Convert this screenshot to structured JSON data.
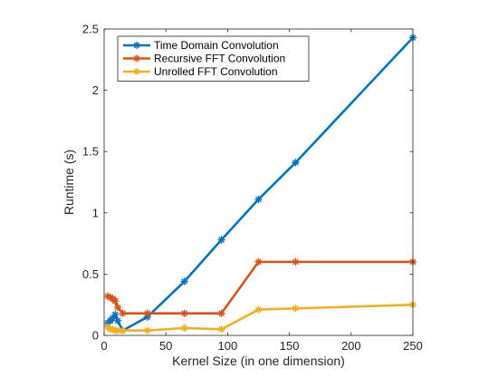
{
  "chart_data": {
    "type": "line",
    "xlabel": "Kernel Size (in one dimension)",
    "ylabel": "Runtime (s)",
    "xlim": [
      0,
      250
    ],
    "ylim": [
      0,
      2.5
    ],
    "xticks": [
      0,
      50,
      100,
      150,
      200,
      250
    ],
    "yticks": [
      0,
      0.5,
      1,
      1.5,
      2,
      2.5
    ],
    "xtick_labels": [
      "0",
      "50",
      "100",
      "150",
      "200",
      "250"
    ],
    "ytick_labels": [
      "0",
      "0.5",
      "1",
      "1.5",
      "2",
      "2.5"
    ],
    "grid": false,
    "legend_position": "top-left",
    "series": [
      {
        "name": "Time Domain Convolution",
        "color": "#0072BD",
        "marker": "asterisk",
        "x": [
          3,
          5,
          7,
          9,
          11,
          15,
          35,
          65,
          95,
          125,
          155,
          250
        ],
        "y": [
          0.1,
          0.12,
          0.14,
          0.17,
          0.12,
          0.04,
          0.15,
          0.44,
          0.78,
          1.11,
          1.41,
          2.43
        ]
      },
      {
        "name": "Recursive FFT Convolution",
        "color": "#D95319",
        "marker": "asterisk",
        "x": [
          3,
          5,
          7,
          9,
          11,
          15,
          35,
          65,
          95,
          125,
          155,
          250
        ],
        "y": [
          0.32,
          0.31,
          0.3,
          0.28,
          0.23,
          0.18,
          0.18,
          0.18,
          0.18,
          0.6,
          0.6,
          0.6
        ]
      },
      {
        "name": "Unrolled FFT Convolution",
        "color": "#EDB120",
        "marker": "asterisk",
        "x": [
          3,
          5,
          7,
          9,
          11,
          15,
          35,
          65,
          95,
          125,
          155,
          250
        ],
        "y": [
          0.07,
          0.05,
          0.05,
          0.04,
          0.04,
          0.04,
          0.04,
          0.06,
          0.05,
          0.21,
          0.22,
          0.25
        ]
      }
    ]
  }
}
